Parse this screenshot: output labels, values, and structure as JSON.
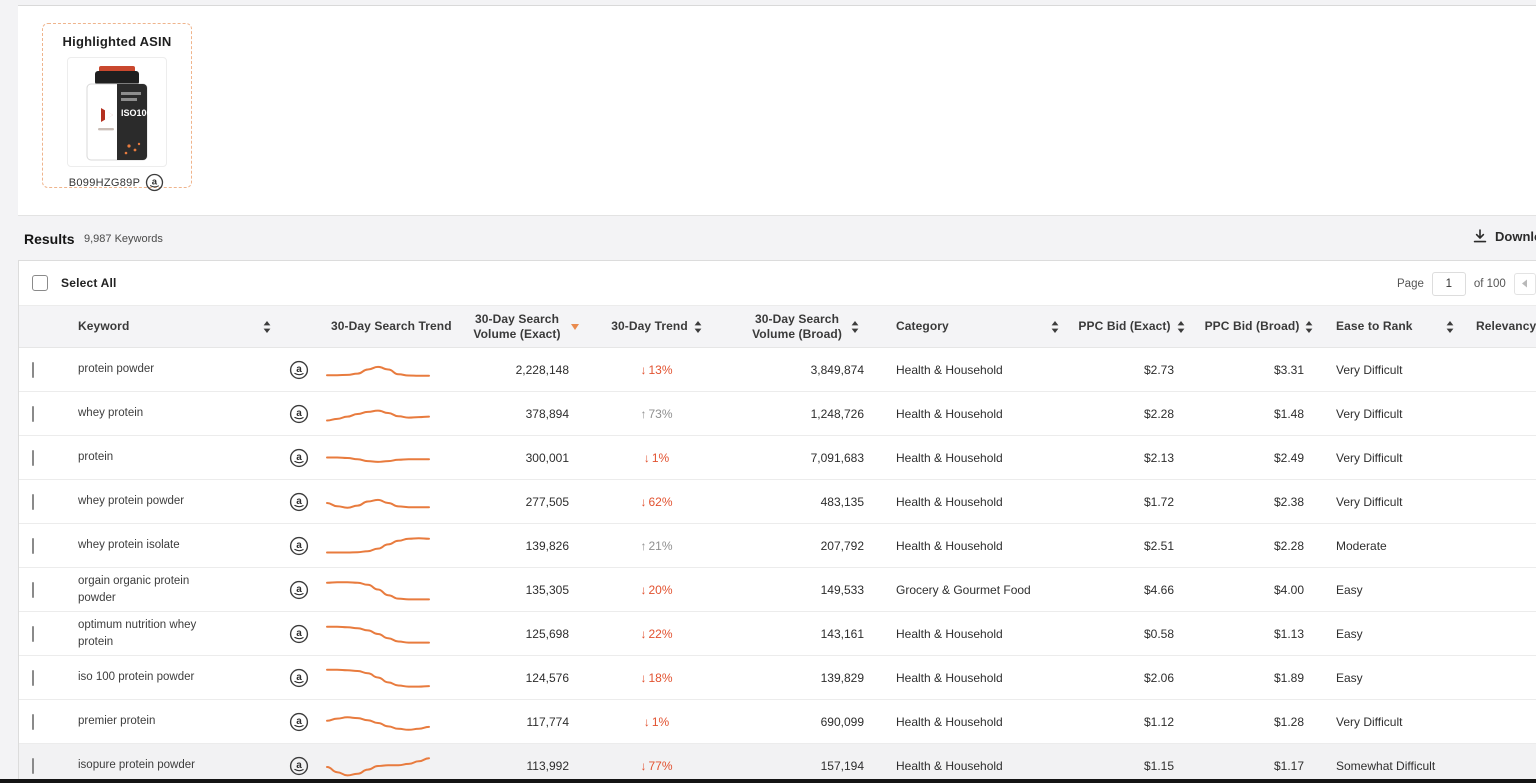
{
  "highlighted_asin": {
    "title": "Highlighted ASIN",
    "asin": "B099HZG89P"
  },
  "results": {
    "label": "Results",
    "count": "9,987 Keywords",
    "download_label": "Download"
  },
  "toolbar": {
    "select_all": "Select All",
    "page_label": "Page",
    "page_value": "1",
    "page_total": "of 100"
  },
  "table": {
    "headers": {
      "keyword": "Keyword",
      "search_trend": "30-Day Search Trend",
      "vol_exact": "30-Day Search Volume (Exact)",
      "trend": "30-Day Trend",
      "vol_broad": "30-Day Search Volume (Broad)",
      "category": "Category",
      "ppc_exact": "PPC Bid (Exact)",
      "ppc_broad": "PPC Bid (Broad)",
      "ease": "Ease to Rank",
      "relevancy": "Relevancy Score"
    },
    "rows": [
      {
        "keyword": "protein powder",
        "trend_dir": "down",
        "trend_pct": "13%",
        "vol_exact": "2,228,148",
        "vol_broad": "3,849,874",
        "category": "Health & Household",
        "ppc_exact": "$2.73",
        "ppc_broad": "$3.31",
        "ease": "Very Difficult",
        "highlighted": false,
        "spark": [
          0.3,
          0.3,
          0.31,
          0.36,
          0.52,
          0.62,
          0.52,
          0.34,
          0.29,
          0.28,
          0.28
        ]
      },
      {
        "keyword": "whey protein",
        "trend_dir": "up",
        "trend_pct": "73%",
        "vol_exact": "378,894",
        "vol_broad": "1,248,726",
        "category": "Health & Household",
        "ppc_exact": "$2.28",
        "ppc_broad": "$1.48",
        "ease": "Very Difficult",
        "highlighted": false,
        "spark": [
          0.25,
          0.31,
          0.4,
          0.5,
          0.58,
          0.63,
          0.54,
          0.41,
          0.36,
          0.38,
          0.4
        ]
      },
      {
        "keyword": "protein",
        "trend_dir": "down",
        "trend_pct": "1%",
        "vol_exact": "300,001",
        "vol_broad": "7,091,683",
        "category": "Health & Household",
        "ppc_exact": "$2.13",
        "ppc_broad": "$2.49",
        "ease": "Very Difficult",
        "highlighted": false,
        "spark": [
          0.52,
          0.52,
          0.5,
          0.45,
          0.38,
          0.35,
          0.38,
          0.43,
          0.45,
          0.45,
          0.45
        ]
      },
      {
        "keyword": "whey protein powder",
        "trend_dir": "down",
        "trend_pct": "62%",
        "vol_exact": "277,505",
        "vol_broad": "483,135",
        "category": "Health & Household",
        "ppc_exact": "$1.72",
        "ppc_broad": "$2.38",
        "ease": "Very Difficult",
        "highlighted": false,
        "spark": [
          0.46,
          0.34,
          0.28,
          0.36,
          0.52,
          0.58,
          0.46,
          0.33,
          0.3,
          0.3,
          0.3
        ]
      },
      {
        "keyword": "whey protein isolate",
        "trend_dir": "up",
        "trend_pct": "21%",
        "vol_exact": "139,826",
        "vol_broad": "207,792",
        "category": "Health & Household",
        "ppc_exact": "$2.51",
        "ppc_broad": "$2.28",
        "ease": "Moderate",
        "highlighted": false,
        "spark": [
          0.25,
          0.25,
          0.25,
          0.26,
          0.3,
          0.4,
          0.56,
          0.7,
          0.78,
          0.8,
          0.78
        ]
      },
      {
        "keyword": "orgain organic protein powder",
        "trend_dir": "down",
        "trend_pct": "20%",
        "vol_exact": "135,305",
        "vol_broad": "149,533",
        "category": "Grocery & Gourmet Food",
        "ppc_exact": "$4.66",
        "ppc_broad": "$4.00",
        "ease": "Easy",
        "highlighted": false,
        "spark": [
          0.78,
          0.8,
          0.8,
          0.78,
          0.7,
          0.52,
          0.3,
          0.17,
          0.14,
          0.14,
          0.14
        ]
      },
      {
        "keyword": "optimum nutrition whey protein",
        "trend_dir": "down",
        "trend_pct": "22%",
        "vol_exact": "125,698",
        "vol_broad": "143,161",
        "category": "Health & Household",
        "ppc_exact": "$0.58",
        "ppc_broad": "$1.13",
        "ease": "Easy",
        "highlighted": false,
        "spark": [
          0.78,
          0.78,
          0.76,
          0.72,
          0.64,
          0.5,
          0.34,
          0.21,
          0.17,
          0.17,
          0.17
        ]
      },
      {
        "keyword": "iso 100 protein powder",
        "trend_dir": "down",
        "trend_pct": "18%",
        "vol_exact": "124,576",
        "vol_broad": "139,829",
        "category": "Health & Household",
        "ppc_exact": "$2.06",
        "ppc_broad": "$1.89",
        "ease": "Easy",
        "highlighted": false,
        "spark": [
          0.82,
          0.82,
          0.8,
          0.77,
          0.68,
          0.52,
          0.33,
          0.21,
          0.17,
          0.17,
          0.19
        ]
      },
      {
        "keyword": "premier protein",
        "trend_dir": "down",
        "trend_pct": "1%",
        "vol_exact": "117,774",
        "vol_broad": "690,099",
        "category": "Health & Household",
        "ppc_exact": "$1.12",
        "ppc_broad": "$1.28",
        "ease": "Very Difficult",
        "highlighted": false,
        "spark": [
          0.55,
          0.63,
          0.68,
          0.65,
          0.57,
          0.46,
          0.33,
          0.24,
          0.2,
          0.24,
          0.31
        ]
      },
      {
        "keyword": "isopure protein powder",
        "trend_dir": "down",
        "trend_pct": "77%",
        "vol_exact": "113,992",
        "vol_broad": "157,194",
        "category": "Health & Household",
        "ppc_exact": "$1.15",
        "ppc_broad": "$1.17",
        "ease": "Somewhat Difficult",
        "highlighted": true,
        "spark": [
          0.46,
          0.26,
          0.14,
          0.2,
          0.36,
          0.5,
          0.53,
          0.53,
          0.58,
          0.68,
          0.8
        ]
      }
    ]
  },
  "colors": {
    "spark": "#E87B3E",
    "trend_down": "#E25230",
    "trend_up": "#8F8F8F",
    "sort_active": "#EA8B4E"
  }
}
